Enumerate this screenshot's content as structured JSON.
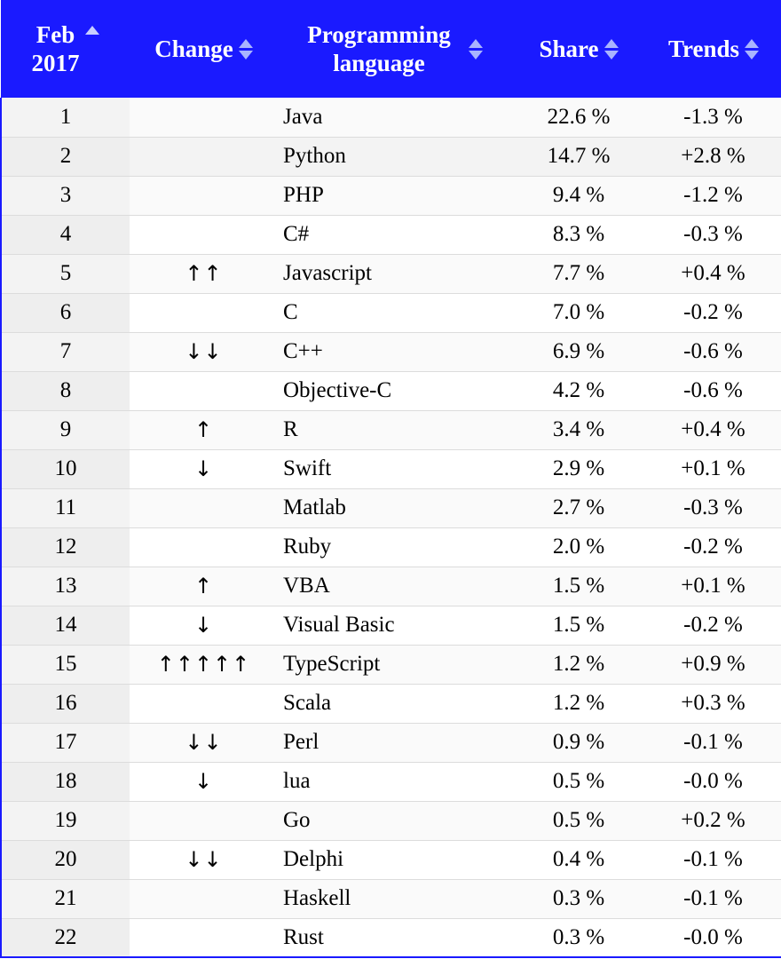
{
  "header": {
    "rank_label_line1": "Feb",
    "rank_label_line2": "2017",
    "change_label": "Change",
    "language_label_line1": "Programming",
    "language_label_line2": "language",
    "share_label": "Share",
    "trends_label": "Trends",
    "background_color": "#1a1aff"
  },
  "rows": [
    {
      "rank": "1",
      "change": "",
      "language": "Java",
      "share": "22.6 %",
      "trend": "-1.3 %"
    },
    {
      "rank": "2",
      "change": "",
      "language": "Python",
      "share": "14.7 %",
      "trend": "+2.8 %"
    },
    {
      "rank": "3",
      "change": "",
      "language": "PHP",
      "share": "9.4 %",
      "trend": "-1.2 %"
    },
    {
      "rank": "4",
      "change": "",
      "language": "C#",
      "share": "8.3 %",
      "trend": "-0.3 %"
    },
    {
      "rank": "5",
      "change": "↑↑",
      "language": "Javascript",
      "share": "7.7 %",
      "trend": "+0.4 %"
    },
    {
      "rank": "6",
      "change": "",
      "language": "C",
      "share": "7.0 %",
      "trend": "-0.2 %"
    },
    {
      "rank": "7",
      "change": "↓↓",
      "language": "C++",
      "share": "6.9 %",
      "trend": "-0.6 %"
    },
    {
      "rank": "8",
      "change": "",
      "language": "Objective-C",
      "share": "4.2 %",
      "trend": "-0.6 %"
    },
    {
      "rank": "9",
      "change": "↑",
      "language": "R",
      "share": "3.4 %",
      "trend": "+0.4 %"
    },
    {
      "rank": "10",
      "change": "↓",
      "language": "Swift",
      "share": "2.9 %",
      "trend": "+0.1 %"
    },
    {
      "rank": "11",
      "change": "",
      "language": "Matlab",
      "share": "2.7 %",
      "trend": "-0.3 %"
    },
    {
      "rank": "12",
      "change": "",
      "language": "Ruby",
      "share": "2.0 %",
      "trend": "-0.2 %"
    },
    {
      "rank": "13",
      "change": "↑",
      "language": "VBA",
      "share": "1.5 %",
      "trend": "+0.1 %"
    },
    {
      "rank": "14",
      "change": "↓",
      "language": "Visual Basic",
      "share": "1.5 %",
      "trend": "-0.2 %"
    },
    {
      "rank": "15",
      "change": "↑↑↑↑↑",
      "language": "TypeScript",
      "share": "1.2 %",
      "trend": "+0.9 %"
    },
    {
      "rank": "16",
      "change": "",
      "language": "Scala",
      "share": "1.2 %",
      "trend": "+0.3 %"
    },
    {
      "rank": "17",
      "change": "↓↓",
      "language": "Perl",
      "share": "0.9 %",
      "trend": "-0.1 %"
    },
    {
      "rank": "18",
      "change": "↓",
      "language": "lua",
      "share": "0.5 %",
      "trend": "-0.0 %"
    },
    {
      "rank": "19",
      "change": "",
      "language": "Go",
      "share": "0.5 %",
      "trend": "+0.2 %"
    },
    {
      "rank": "20",
      "change": "↓↓",
      "language": "Delphi",
      "share": "0.4 %",
      "trend": "-0.1 %"
    },
    {
      "rank": "21",
      "change": "",
      "language": "Haskell",
      "share": "0.3 %",
      "trend": "-0.1 %"
    },
    {
      "rank": "22",
      "change": "",
      "language": "Rust",
      "share": "0.3 %",
      "trend": "-0.0 %"
    }
  ]
}
